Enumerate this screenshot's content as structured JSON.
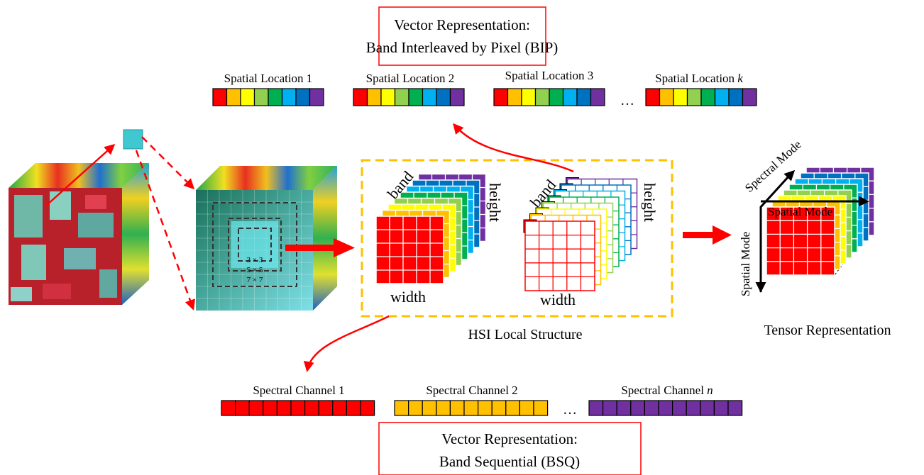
{
  "bip_box": {
    "line1": "Vector Representation:",
    "line2": "Band Interleaved by Pixel (BIP)"
  },
  "bsq_box": {
    "line1": "Vector Representation:",
    "line2": "Band Sequential (BSQ)"
  },
  "spatial_locations": [
    {
      "label": "Spatial Location 1"
    },
    {
      "label": "Spatial Location 2"
    },
    {
      "label": "Spatial Location 3"
    },
    {
      "label": "Spatial Location ",
      "var": "k"
    }
  ],
  "spectral_channels": [
    {
      "label": "Spectral Channel 1",
      "color": "#ff0000"
    },
    {
      "label": "Spectral Channel 2",
      "color": "#ffc000"
    },
    {
      "label": "Spectral Channel ",
      "var": "n",
      "color": "#7030a0"
    }
  ],
  "ellipsis": "…",
  "band_colors": [
    "#ff0000",
    "#ffc000",
    "#ffff00",
    "#92d050",
    "#00b050",
    "#00b0f0",
    "#0070c0",
    "#7030a0"
  ],
  "windows": [
    "3 × 3",
    "5 × 5",
    "7 × 7"
  ],
  "local_structure": {
    "band": "band",
    "height": "height",
    "width": "width",
    "caption": "HSI Local Structure",
    "border_color": "#ffc000"
  },
  "tensor": {
    "spectral_mode": "Spectral Mode",
    "spatial_mode_x": "Spatial Mode",
    "spatial_mode_y": "Spatial Mode",
    "caption": "Tensor Representation"
  },
  "accent_color": "#ff0000"
}
